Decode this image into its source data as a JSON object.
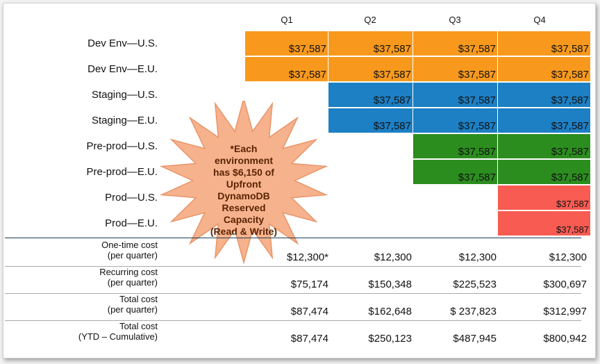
{
  "quarters": [
    "Q1",
    "Q2",
    "Q3",
    "Q4"
  ],
  "rows": [
    {
      "label": "Dev Env—U.S.",
      "color": "#f8991d",
      "start": 0,
      "value": "$37,587"
    },
    {
      "label": "Dev Env—E.U.",
      "color": "#f8991d",
      "start": 0,
      "value": "$37,587"
    },
    {
      "label": "Staging—U.S.",
      "color": "#1d7fc4",
      "start": 1,
      "value": "$37,587"
    },
    {
      "label": "Staging—E.U.",
      "color": "#1d7fc4",
      "start": 1,
      "value": "$37,587"
    },
    {
      "label": "Pre-prod—U.S.",
      "color": "#2c8d1f",
      "start": 2,
      "value": "$37,587"
    },
    {
      "label": "Pre-prod—E.U.",
      "color": "#2c8d1f",
      "start": 2,
      "value": "$37,587"
    },
    {
      "label": "Prod—U.S.",
      "color": "#f75b52",
      "start": 3,
      "value": "$37,587"
    },
    {
      "label": "Prod—E.U.",
      "color": "#f75b52",
      "start": 3,
      "value": "$37,587"
    }
  ],
  "summary": [
    {
      "label1": "One-time cost",
      "label2": "(per quarter)",
      "values": [
        "$12,300*",
        "$12,300",
        "$12,300",
        "$12,300"
      ]
    },
    {
      "label1": "Recurring cost",
      "label2": "(per quarter)",
      "values": [
        "$75,174",
        "$150,348",
        "$225,523",
        "$300,697"
      ]
    },
    {
      "label1": "Total cost",
      "label2": "(per quarter)",
      "values": [
        "$87,474",
        "$162,648",
        "$ 237,823",
        "$312,997"
      ]
    },
    {
      "label1": "Total cost",
      "label2": "(YTD – Cumulative)",
      "values": [
        "$87,474",
        "$250,123",
        "$487,945",
        "$800,942"
      ]
    }
  ],
  "callout": {
    "lines": [
      "*Each environment",
      "has $6,150 of",
      "Upfront",
      "DynamoDB",
      "Reserved Capacity",
      "(Read & Write)"
    ],
    "fill": "#f6b28c",
    "stroke": "#e8956a"
  }
}
